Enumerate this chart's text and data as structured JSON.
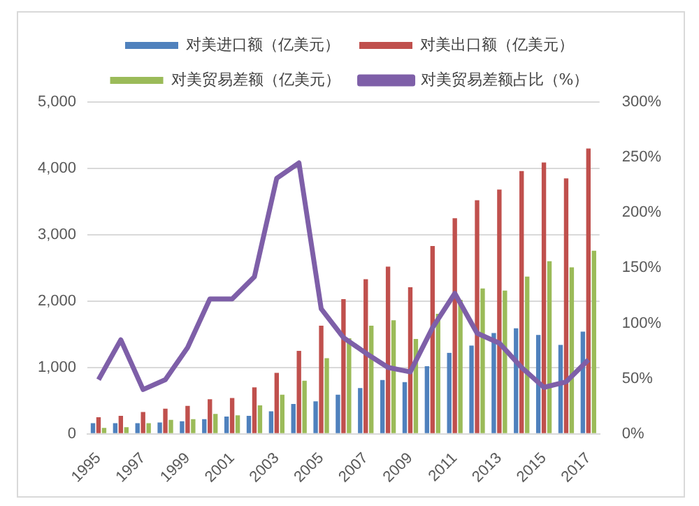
{
  "chart_data": {
    "type": "bar",
    "categories": [
      "1995",
      null,
      "1997",
      null,
      "1999",
      null,
      "2001",
      null,
      "2003",
      null,
      "2005",
      null,
      "2007",
      null,
      "2009",
      null,
      "2011",
      null,
      "2013",
      null,
      "2015",
      null,
      "2017"
    ],
    "series": [
      {
        "name": "对美进口额（亿美元）",
        "color": "#4f81bd",
        "values": [
          160,
          160,
          160,
          170,
          190,
          220,
          260,
          270,
          340,
          450,
          490,
          590,
          690,
          810,
          780,
          1020,
          1220,
          1330,
          1520,
          1590,
          1490,
          1340,
          1540
        ]
      },
      {
        "name": "对美出口额（亿美元）",
        "color": "#c0504d",
        "values": [
          250,
          270,
          330,
          380,
          420,
          520,
          540,
          700,
          920,
          1250,
          1630,
          2030,
          2330,
          2520,
          2210,
          2830,
          3250,
          3520,
          3680,
          3960,
          4090,
          3850,
          4300
        ]
      },
      {
        "name": "对美贸易差额（亿美元）",
        "color": "#9bbb59",
        "values": [
          90,
          100,
          160,
          210,
          220,
          300,
          280,
          430,
          590,
          800,
          1140,
          1440,
          1630,
          1710,
          1430,
          1810,
          2020,
          2190,
          2160,
          2370,
          2600,
          2510,
          2760
        ]
      },
      {
        "name": "对美贸易差额占比（%）",
        "color": "#7e5fa8",
        "type": "line",
        "axis": "y2",
        "values": [
          49,
          85,
          40,
          49,
          78,
          122,
          122,
          142,
          231,
          245,
          113,
          87,
          73,
          60,
          56,
          96,
          127,
          91,
          82,
          60,
          42,
          47,
          67
        ]
      }
    ],
    "ylim": [
      0,
      5000
    ],
    "yticks": [
      {
        "value": 0,
        "label": "0"
      },
      {
        "value": 1000,
        "label": "1,000"
      },
      {
        "value": 2000,
        "label": "2,000"
      },
      {
        "value": 3000,
        "label": "3,000"
      },
      {
        "value": 4000,
        "label": "4,000"
      },
      {
        "value": 5000,
        "label": "5,000"
      }
    ],
    "y2lim": [
      0,
      300
    ],
    "y2ticks": [
      {
        "value": 0,
        "label": "0%"
      },
      {
        "value": 50,
        "label": "50%"
      },
      {
        "value": 100,
        "label": "100%"
      },
      {
        "value": 150,
        "label": "150%"
      },
      {
        "value": 200,
        "label": "200%"
      },
      {
        "value": 250,
        "label": "250%"
      },
      {
        "value": 300,
        "label": "300%"
      }
    ],
    "grid": "y",
    "legend": "top",
    "marker": "none"
  }
}
